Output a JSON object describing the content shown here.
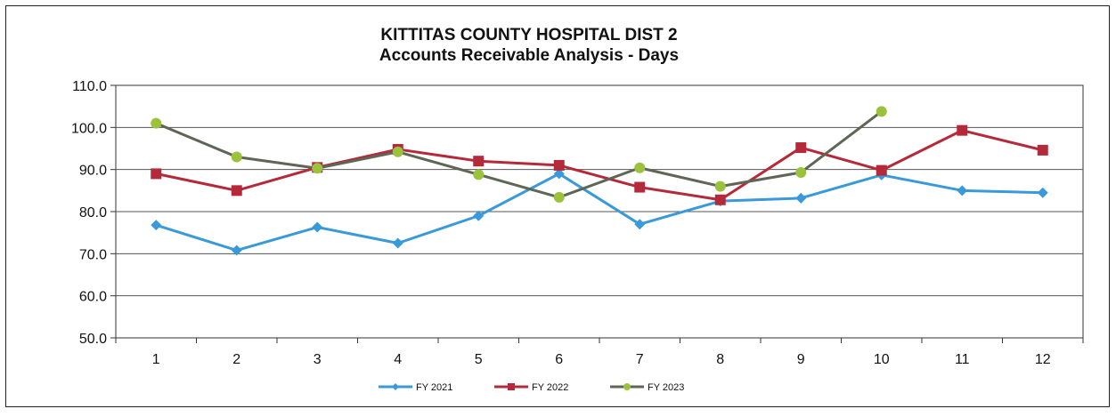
{
  "chart_data": {
    "type": "line",
    "title": "KITTITAS COUNTY HOSPITAL DIST 2",
    "subtitle": "Accounts Receivable Analysis - Days",
    "categories": [
      "1",
      "2",
      "3",
      "4",
      "5",
      "6",
      "7",
      "8",
      "9",
      "10",
      "11",
      "12"
    ],
    "ylim": [
      50,
      110
    ],
    "yticks": [
      "110.0",
      "100.0",
      "90.0",
      "80.0",
      "70.0",
      "60.0",
      "50.0"
    ],
    "grid": true,
    "legend_position": "bottom",
    "series": [
      {
        "name": "FY 2021",
        "color": "#3a9ad9",
        "marker": "diamond",
        "values": [
          76.8,
          70.8,
          76.3,
          72.5,
          79.0,
          89.0,
          77.0,
          82.5,
          83.2,
          88.7,
          85.0,
          84.5
        ]
      },
      {
        "name": "FY 2022",
        "color": "#b52a3a",
        "marker": "square",
        "values": [
          89.0,
          85.0,
          90.5,
          94.8,
          92.0,
          91.0,
          85.8,
          82.8,
          95.2,
          89.8,
          99.3,
          94.6
        ]
      },
      {
        "name": "FY 2023",
        "color": "#5e6655",
        "marker": "circle",
        "marker_color": "#9ac23c",
        "values": [
          101.0,
          93.0,
          90.3,
          94.2,
          88.8,
          83.4,
          90.4,
          86.0,
          89.3,
          103.8,
          null,
          null
        ]
      }
    ]
  }
}
